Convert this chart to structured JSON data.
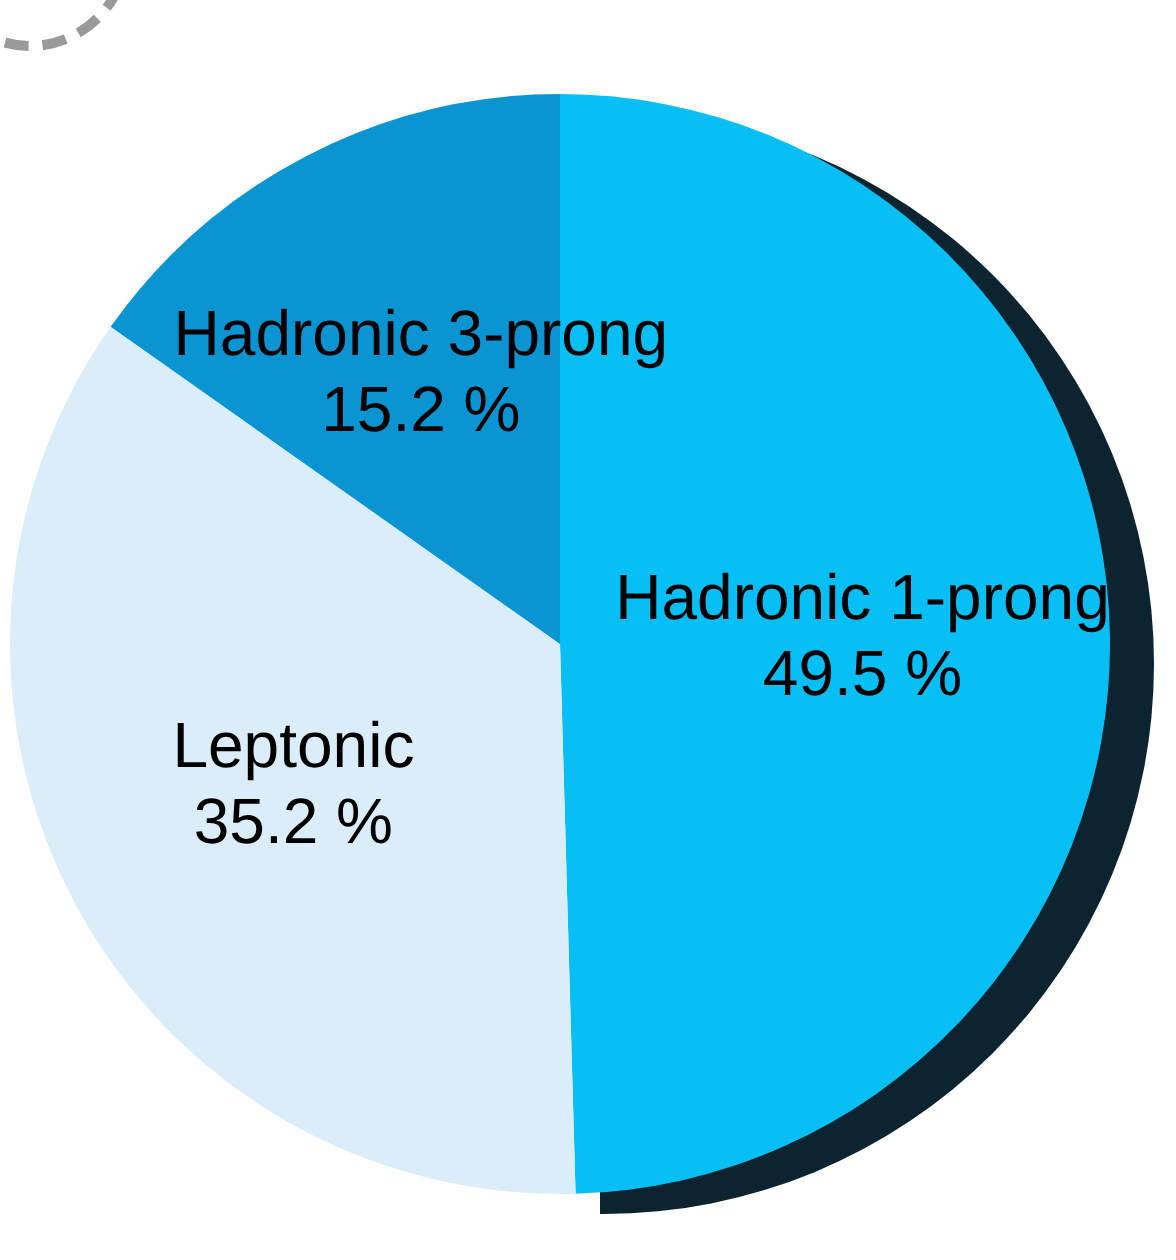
{
  "chart_data": {
    "type": "pie",
    "categories": [
      "Hadronic 1-prong",
      "Leptonic",
      "Hadronic 3-prong"
    ],
    "values": [
      49.5,
      35.2,
      15.2
    ],
    "colors": [
      "#08bff5",
      "#dcedfa",
      "#0a95d2"
    ],
    "value_labels": [
      "49.5 %",
      "35.2 %",
      "15.2 %"
    ]
  }
}
